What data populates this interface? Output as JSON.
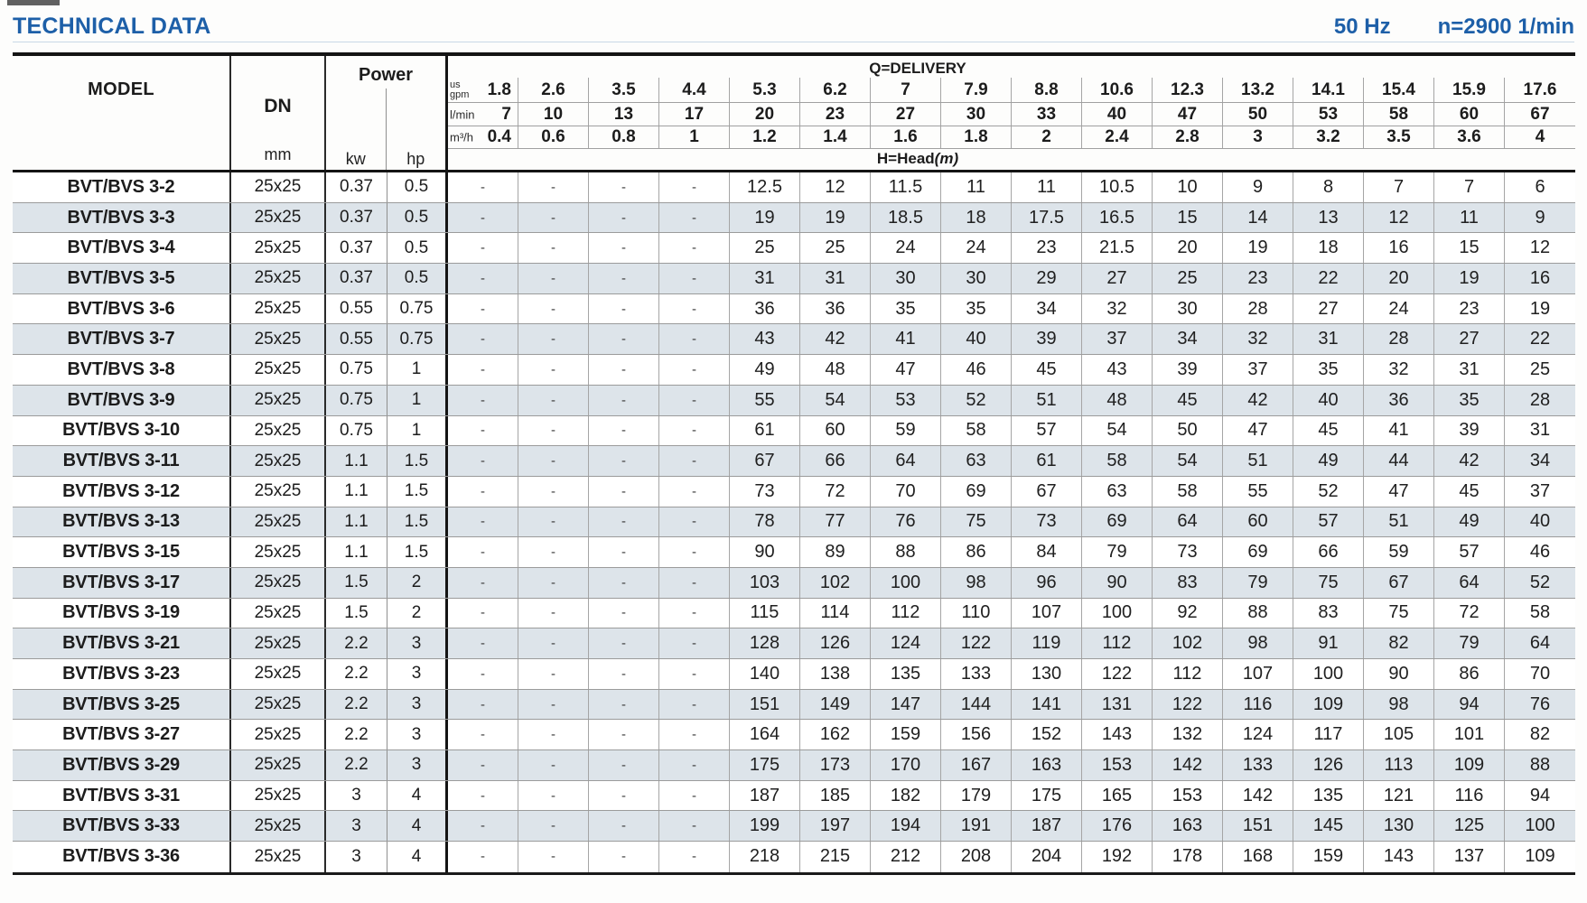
{
  "page": {
    "title": "TECHNICAL DATA",
    "frequency": "50 Hz",
    "speed": "n=2900 1/min"
  },
  "table": {
    "model_header": "MODEL",
    "dn_header": "DN",
    "dn_unit": "mm",
    "power_header": "Power",
    "power_units": [
      "kw",
      "hp"
    ],
    "delivery_header": "Q=DELIVERY",
    "head_label": "H=Head",
    "head_unit": "(m)",
    "flow_rows": [
      {
        "key": "usgpm",
        "unit_lines": [
          "us",
          "gpm"
        ],
        "values": [
          "1.8",
          "2.6",
          "3.5",
          "4.4",
          "5.3",
          "6.2",
          "7",
          "7.9",
          "8.8",
          "10.6",
          "12.3",
          "13.2",
          "14.1",
          "15.4",
          "15.9",
          "17.6"
        ]
      },
      {
        "key": "lmin",
        "unit_lines": [
          "l/min"
        ],
        "values": [
          "7",
          "10",
          "13",
          "17",
          "20",
          "23",
          "27",
          "30",
          "33",
          "40",
          "47",
          "50",
          "53",
          "58",
          "60",
          "67"
        ]
      },
      {
        "key": "m3h",
        "unit_lines": [
          "m³/h"
        ],
        "values": [
          "0.4",
          "0.6",
          "0.8",
          "1",
          "1.2",
          "1.4",
          "1.6",
          "1.8",
          "2",
          "2.4",
          "2.8",
          "3",
          "3.2",
          "3.5",
          "3.6",
          "4"
        ]
      }
    ],
    "rows": [
      {
        "model": "BVT/BVS 3-2",
        "dn": "25x25",
        "kw": "0.37",
        "hp": "0.5",
        "head": [
          "-",
          "-",
          "-",
          "-",
          "12.5",
          "12",
          "11.5",
          "11",
          "11",
          "10.5",
          "10",
          "9",
          "8",
          "7",
          "7",
          "6"
        ]
      },
      {
        "model": "BVT/BVS 3-3",
        "dn": "25x25",
        "kw": "0.37",
        "hp": "0.5",
        "head": [
          "-",
          "-",
          "-",
          "-",
          "19",
          "19",
          "18.5",
          "18",
          "17.5",
          "16.5",
          "15",
          "14",
          "13",
          "12",
          "11",
          "9"
        ]
      },
      {
        "model": "BVT/BVS 3-4",
        "dn": "25x25",
        "kw": "0.37",
        "hp": "0.5",
        "head": [
          "-",
          "-",
          "-",
          "-",
          "25",
          "25",
          "24",
          "24",
          "23",
          "21.5",
          "20",
          "19",
          "18",
          "16",
          "15",
          "12"
        ]
      },
      {
        "model": "BVT/BVS 3-5",
        "dn": "25x25",
        "kw": "0.37",
        "hp": "0.5",
        "head": [
          "-",
          "-",
          "-",
          "-",
          "31",
          "31",
          "30",
          "30",
          "29",
          "27",
          "25",
          "23",
          "22",
          "20",
          "19",
          "16"
        ]
      },
      {
        "model": "BVT/BVS 3-6",
        "dn": "25x25",
        "kw": "0.55",
        "hp": "0.75",
        "head": [
          "-",
          "-",
          "-",
          "-",
          "36",
          "36",
          "35",
          "35",
          "34",
          "32",
          "30",
          "28",
          "27",
          "24",
          "23",
          "19"
        ]
      },
      {
        "model": "BVT/BVS 3-7",
        "dn": "25x25",
        "kw": "0.55",
        "hp": "0.75",
        "head": [
          "-",
          "-",
          "-",
          "-",
          "43",
          "42",
          "41",
          "40",
          "39",
          "37",
          "34",
          "32",
          "31",
          "28",
          "27",
          "22"
        ]
      },
      {
        "model": "BVT/BVS 3-8",
        "dn": "25x25",
        "kw": "0.75",
        "hp": "1",
        "head": [
          "-",
          "-",
          "-",
          "-",
          "49",
          "48",
          "47",
          "46",
          "45",
          "43",
          "39",
          "37",
          "35",
          "32",
          "31",
          "25"
        ]
      },
      {
        "model": "BVT/BVS 3-9",
        "dn": "25x25",
        "kw": "0.75",
        "hp": "1",
        "head": [
          "-",
          "-",
          "-",
          "-",
          "55",
          "54",
          "53",
          "52",
          "51",
          "48",
          "45",
          "42",
          "40",
          "36",
          "35",
          "28"
        ]
      },
      {
        "model": "BVT/BVS 3-10",
        "dn": "25x25",
        "kw": "0.75",
        "hp": "1",
        "head": [
          "-",
          "-",
          "-",
          "-",
          "61",
          "60",
          "59",
          "58",
          "57",
          "54",
          "50",
          "47",
          "45",
          "41",
          "39",
          "31"
        ]
      },
      {
        "model": "BVT/BVS 3-11",
        "dn": "25x25",
        "kw": "1.1",
        "hp": "1.5",
        "head": [
          "-",
          "-",
          "-",
          "-",
          "67",
          "66",
          "64",
          "63",
          "61",
          "58",
          "54",
          "51",
          "49",
          "44",
          "42",
          "34"
        ]
      },
      {
        "model": "BVT/BVS 3-12",
        "dn": "25x25",
        "kw": "1.1",
        "hp": "1.5",
        "head": [
          "-",
          "-",
          "-",
          "-",
          "73",
          "72",
          "70",
          "69",
          "67",
          "63",
          "58",
          "55",
          "52",
          "47",
          "45",
          "37"
        ]
      },
      {
        "model": "BVT/BVS 3-13",
        "dn": "25x25",
        "kw": "1.1",
        "hp": "1.5",
        "head": [
          "-",
          "-",
          "-",
          "-",
          "78",
          "77",
          "76",
          "75",
          "73",
          "69",
          "64",
          "60",
          "57",
          "51",
          "49",
          "40"
        ]
      },
      {
        "model": "BVT/BVS 3-15",
        "dn": "25x25",
        "kw": "1.1",
        "hp": "1.5",
        "head": [
          "-",
          "-",
          "-",
          "-",
          "90",
          "89",
          "88",
          "86",
          "84",
          "79",
          "73",
          "69",
          "66",
          "59",
          "57",
          "46"
        ]
      },
      {
        "model": "BVT/BVS 3-17",
        "dn": "25x25",
        "kw": "1.5",
        "hp": "2",
        "head": [
          "-",
          "-",
          "-",
          "-",
          "103",
          "102",
          "100",
          "98",
          "96",
          "90",
          "83",
          "79",
          "75",
          "67",
          "64",
          "52"
        ]
      },
      {
        "model": "BVT/BVS 3-19",
        "dn": "25x25",
        "kw": "1.5",
        "hp": "2",
        "head": [
          "-",
          "-",
          "-",
          "-",
          "115",
          "114",
          "112",
          "110",
          "107",
          "100",
          "92",
          "88",
          "83",
          "75",
          "72",
          "58"
        ]
      },
      {
        "model": "BVT/BVS 3-21",
        "dn": "25x25",
        "kw": "2.2",
        "hp": "3",
        "head": [
          "-",
          "-",
          "-",
          "-",
          "128",
          "126",
          "124",
          "122",
          "119",
          "112",
          "102",
          "98",
          "91",
          "82",
          "79",
          "64"
        ]
      },
      {
        "model": "BVT/BVS 3-23",
        "dn": "25x25",
        "kw": "2.2",
        "hp": "3",
        "head": [
          "-",
          "-",
          "-",
          "-",
          "140",
          "138",
          "135",
          "133",
          "130",
          "122",
          "112",
          "107",
          "100",
          "90",
          "86",
          "70"
        ]
      },
      {
        "model": "BVT/BVS 3-25",
        "dn": "25x25",
        "kw": "2.2",
        "hp": "3",
        "head": [
          "-",
          "-",
          "-",
          "-",
          "151",
          "149",
          "147",
          "144",
          "141",
          "131",
          "122",
          "116",
          "109",
          "98",
          "94",
          "76"
        ]
      },
      {
        "model": "BVT/BVS 3-27",
        "dn": "25x25",
        "kw": "2.2",
        "hp": "3",
        "head": [
          "-",
          "-",
          "-",
          "-",
          "164",
          "162",
          "159",
          "156",
          "152",
          "143",
          "132",
          "124",
          "117",
          "105",
          "101",
          "82"
        ]
      },
      {
        "model": "BVT/BVS 3-29",
        "dn": "25x25",
        "kw": "2.2",
        "hp": "3",
        "head": [
          "-",
          "-",
          "-",
          "-",
          "175",
          "173",
          "170",
          "167",
          "163",
          "153",
          "142",
          "133",
          "126",
          "113",
          "109",
          "88"
        ]
      },
      {
        "model": "BVT/BVS 3-31",
        "dn": "25x25",
        "kw": "3",
        "hp": "4",
        "head": [
          "-",
          "-",
          "-",
          "-",
          "187",
          "185",
          "182",
          "179",
          "175",
          "165",
          "153",
          "142",
          "135",
          "121",
          "116",
          "94"
        ]
      },
      {
        "model": "BVT/BVS 3-33",
        "dn": "25x25",
        "kw": "3",
        "hp": "4",
        "head": [
          "-",
          "-",
          "-",
          "-",
          "199",
          "197",
          "194",
          "191",
          "187",
          "176",
          "163",
          "151",
          "145",
          "130",
          "125",
          "100"
        ]
      },
      {
        "model": "BVT/BVS 3-36",
        "dn": "25x25",
        "kw": "3",
        "hp": "4",
        "head": [
          "-",
          "-",
          "-",
          "-",
          "218",
          "215",
          "212",
          "208",
          "204",
          "192",
          "178",
          "168",
          "159",
          "143",
          "137",
          "109"
        ]
      }
    ]
  },
  "colors": {
    "accent_blue": "#1d5fa8",
    "row_shade": "#dde4ea",
    "border_dark": "#141414"
  }
}
